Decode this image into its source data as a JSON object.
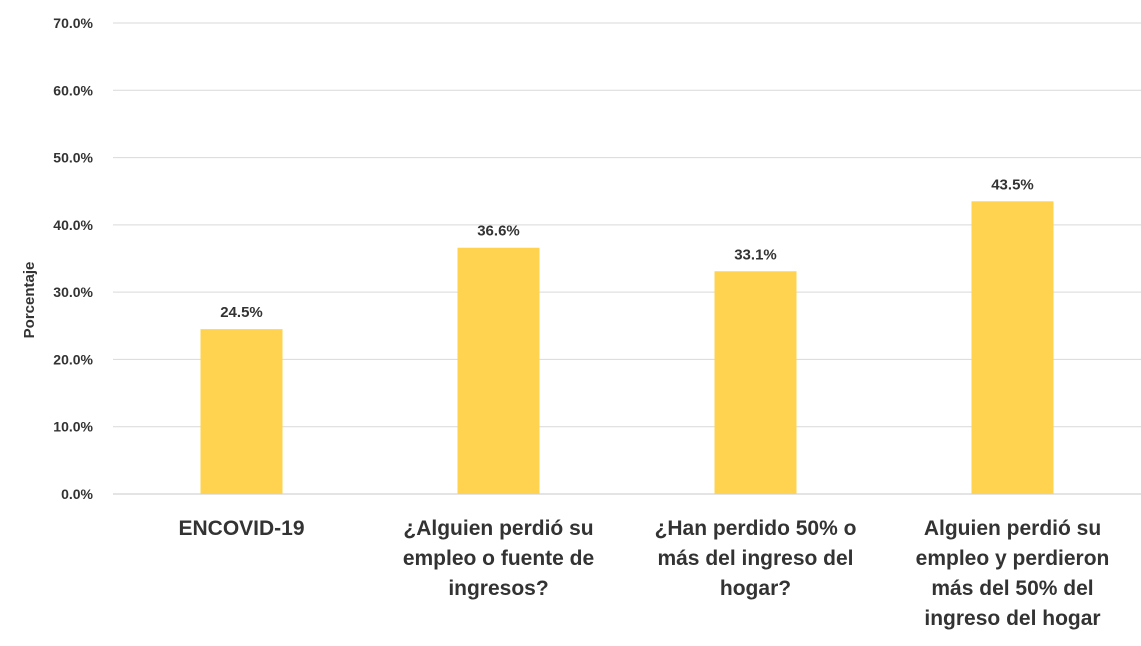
{
  "chart_data": {
    "type": "bar",
    "ylabel": "Porcentaje",
    "xlabel": "",
    "ylim": [
      0,
      70
    ],
    "yticks": [
      "0.0%",
      "10.0%",
      "20.0%",
      "30.0%",
      "40.0%",
      "50.0%",
      "60.0%",
      "70.0%"
    ],
    "grid": true,
    "bar_color": "#FFD34F",
    "categories": [
      "ENCOVID-19",
      "¿Alguien perdió su empleo o fuente de ingresos?",
      "¿Han perdido 50% o más del ingreso del hogar?",
      "Alguien perdió su empleo y perdieron más del 50% del ingreso del hogar"
    ],
    "values": [
      24.5,
      36.6,
      33.1,
      43.5
    ],
    "data_labels": [
      "24.5%",
      "36.6%",
      "33.1%",
      "43.5%"
    ]
  }
}
